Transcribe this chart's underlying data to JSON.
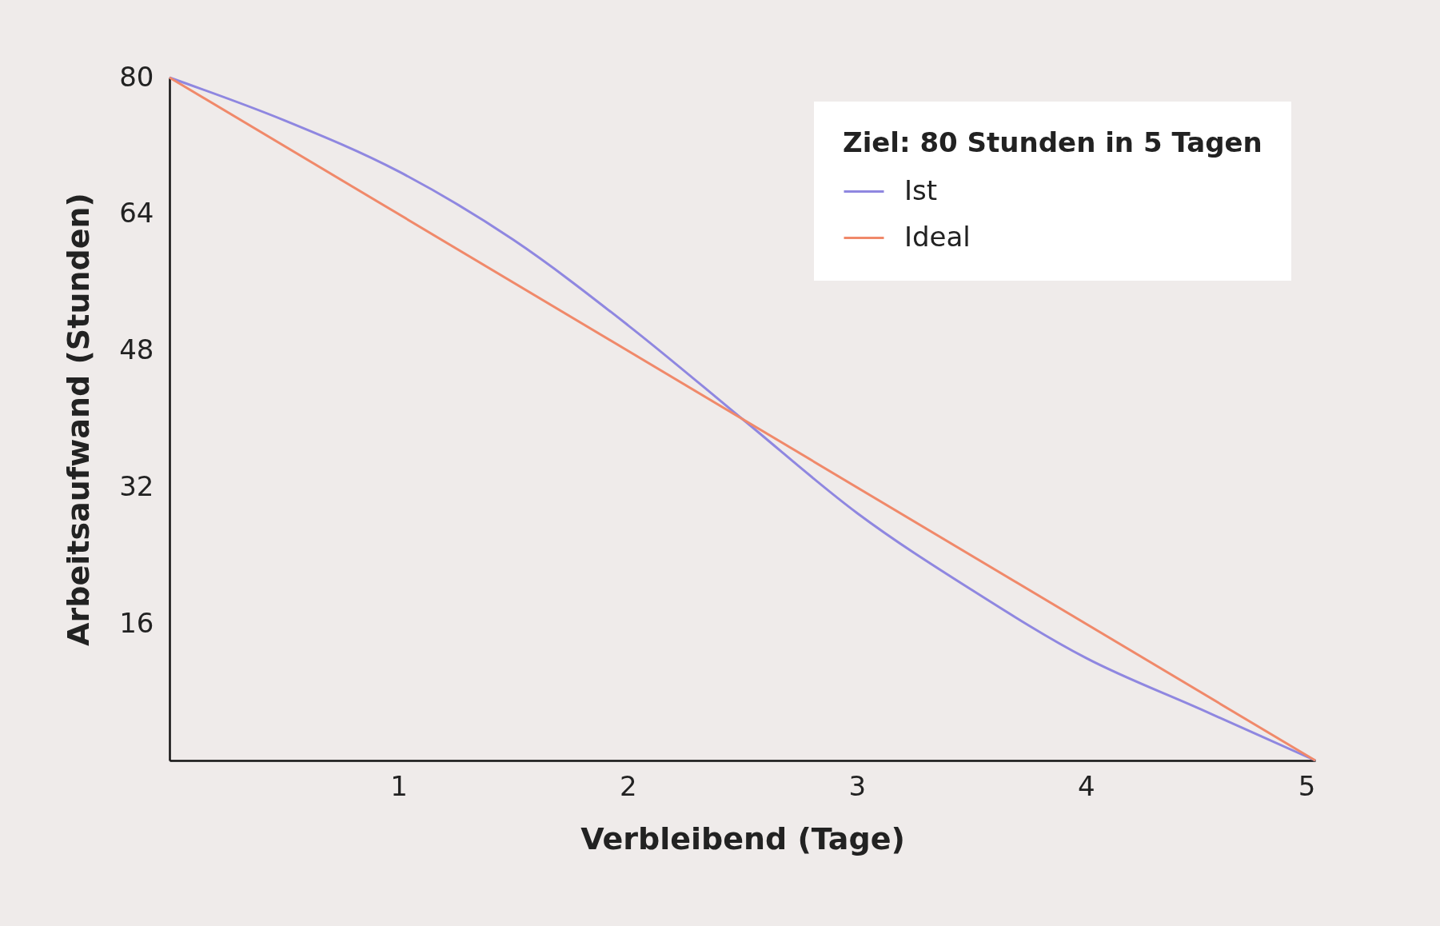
{
  "chart_data": {
    "type": "line",
    "xlabel": "Verbleibend (Tage)",
    "ylabel": "Arbeitsaufwand (Stunden)",
    "legend_title": "Ziel: 80 Stunden in 5 Tagen",
    "x": [
      0,
      0.5,
      1,
      1.5,
      2,
      2.5,
      3,
      3.5,
      4,
      4.5,
      5
    ],
    "series": [
      {
        "name": "Ist",
        "color": "#8f87e0",
        "values": [
          80,
          75,
          69,
          61,
          51,
          40,
          29,
          20,
          12,
          6,
          0
        ]
      },
      {
        "name": "Ideal",
        "color": "#f0896a",
        "x": [
          0,
          5
        ],
        "values": [
          80,
          0
        ]
      }
    ],
    "xlim": [
      0,
      5
    ],
    "xticks": [
      1,
      2,
      3,
      4,
      5
    ],
    "ylim": [
      0,
      80
    ],
    "yticks": [
      16,
      32,
      48,
      64,
      80
    ],
    "grid": false,
    "legend": "top right",
    "marker": "none",
    "line_style": "solid"
  }
}
